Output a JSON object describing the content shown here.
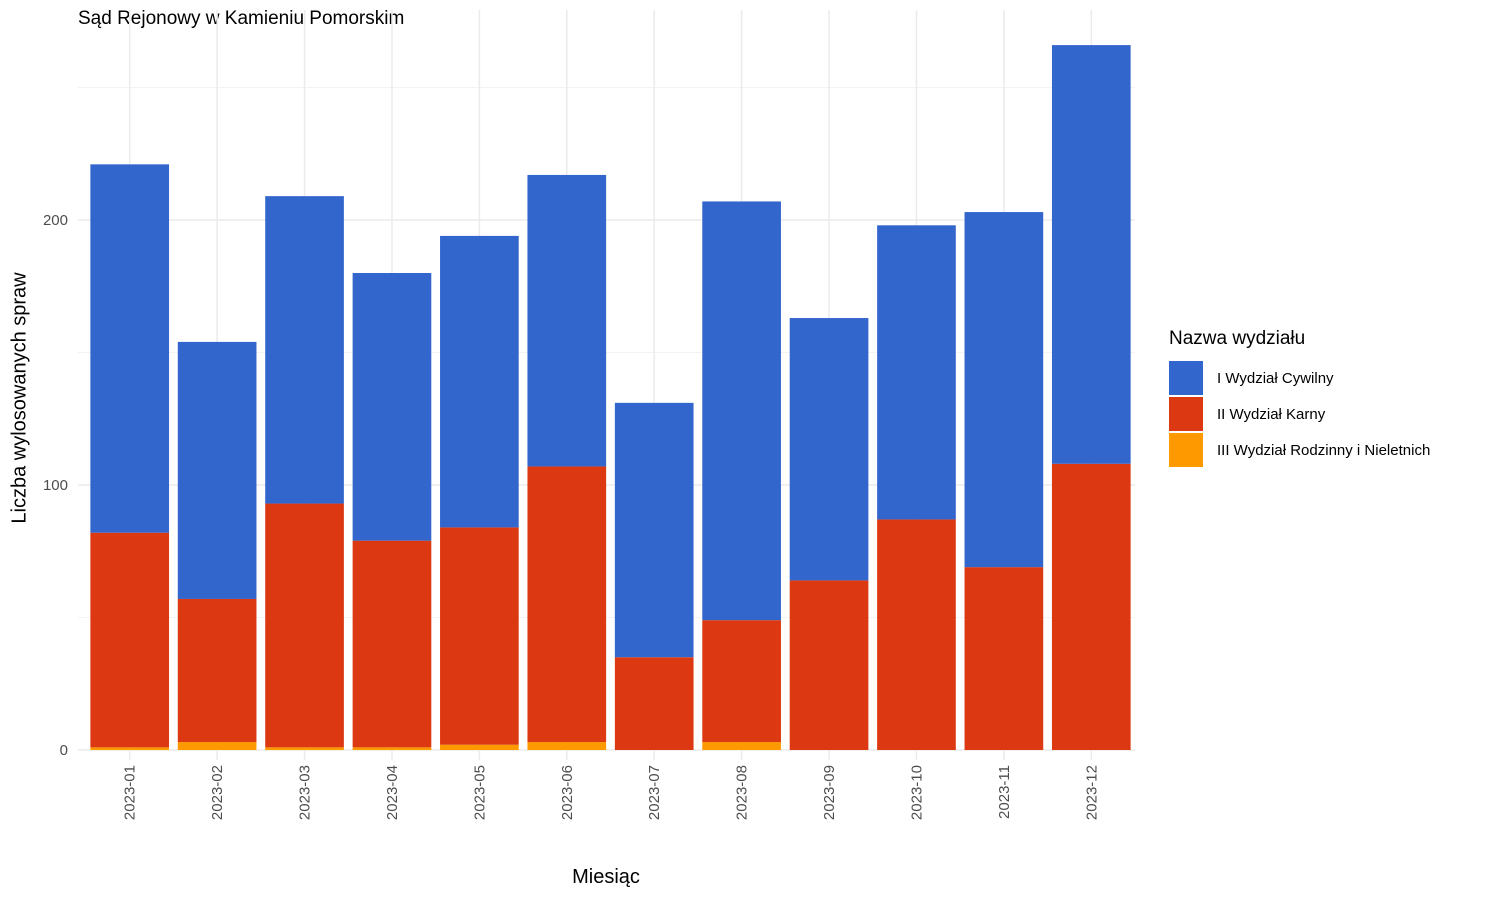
{
  "chart_data": {
    "type": "bar",
    "stacked": true,
    "title": "Sąd Rejonowy w Kamieniu Pomorskim",
    "xlabel": "Miesiąc",
    "ylabel": "Liczba wylosowanych spraw",
    "ylim": [
      0,
      280
    ],
    "yticks": [
      0,
      100,
      200
    ],
    "grid": true,
    "legend_position": "right",
    "legend_title": "Nazwa wydziału",
    "categories": [
      "2023-01",
      "2023-02",
      "2023-03",
      "2023-04",
      "2023-05",
      "2023-06",
      "2023-07",
      "2023-08",
      "2023-09",
      "2023-10",
      "2023-11",
      "2023-12"
    ],
    "series": [
      {
        "name": "III Wydział Rodzinny i Nieletnich",
        "color": "#FF9900",
        "values": [
          1,
          3,
          1,
          1,
          2,
          3,
          0,
          3,
          0,
          0,
          0,
          0
        ]
      },
      {
        "name": "II Wydział Karny",
        "color": "#DC3912",
        "values": [
          81,
          54,
          92,
          78,
          82,
          104,
          35,
          46,
          64,
          87,
          69,
          108
        ]
      },
      {
        "name": "I Wydział Cywilny",
        "color": "#3366CC",
        "values": [
          139,
          97,
          116,
          101,
          110,
          110,
          96,
          158,
          99,
          111,
          134,
          158
        ]
      }
    ]
  }
}
